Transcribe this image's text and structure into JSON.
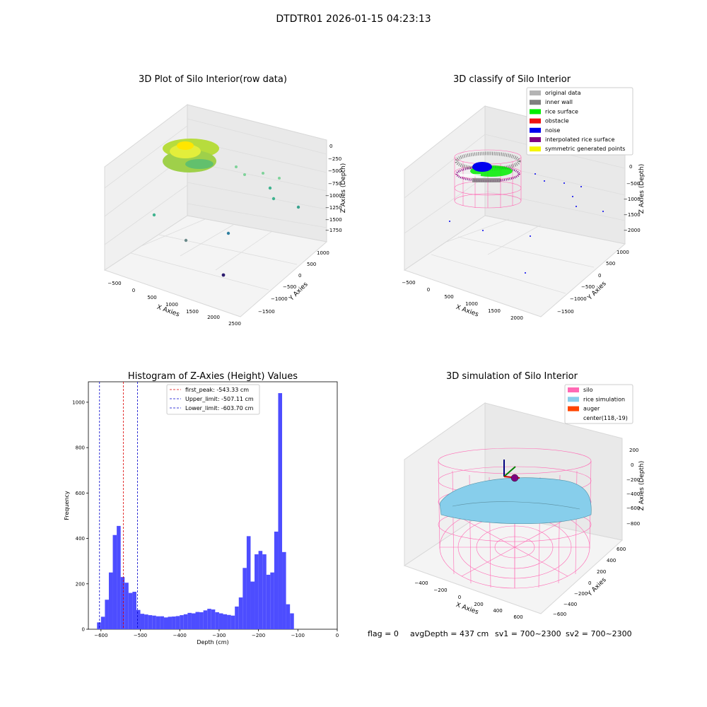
{
  "suptitle": "DTDTR01 2026-01-15 04:23:13",
  "footer": {
    "flag": "flag = 0",
    "avg_depth": "avgDepth = 437 cm",
    "sv1": "sv1 = 700~2300",
    "sv2": "sv2 = 700~2300"
  },
  "chart_data": [
    {
      "type": "scatter",
      "title": "3D Plot of Silo Interior(row data)",
      "xlabel": "X Axies",
      "ylabel": "Y Axies",
      "zlabel": "Z Axies (Depth)",
      "x_ticks": [
        "−500",
        "0",
        "500",
        "1000",
        "1500",
        "2000",
        "2500"
      ],
      "y_ticks": [
        "1000",
        "500",
        "0",
        "−500",
        "−1000",
        "−1500"
      ],
      "z_ticks": [
        "0",
        "−250",
        "−500",
        "−750",
        "−1000",
        "−1250",
        "−1500",
        "−1750"
      ],
      "grid": true,
      "colormap": [
        "#ffe600",
        "#9ad23a",
        "#33b58a",
        "#2f6ea6",
        "#2c1c6f"
      ]
    },
    {
      "type": "scatter",
      "title": "3D classify of Silo Interior",
      "xlabel": "X Axies",
      "ylabel": "Y Axies",
      "zlabel": "Z Axies (Depth)",
      "x_ticks": [
        "−500",
        "0",
        "500",
        "1000",
        "1500",
        "2000"
      ],
      "y_ticks": [
        "1000",
        "500",
        "0",
        "−500",
        "−1000",
        "−1500"
      ],
      "z_ticks": [
        "0",
        "−500",
        "−1000",
        "−1500",
        "−2000"
      ],
      "grid": true,
      "legend_position": "top-right",
      "legend": [
        {
          "label": "original data",
          "color": "#b4b4b4"
        },
        {
          "label": "inner wall",
          "color": "#808080"
        },
        {
          "label": "rice surface",
          "color": "#00ee00"
        },
        {
          "label": "obstacle",
          "color": "#ee1111"
        },
        {
          "label": "noise",
          "color": "#0000ee"
        },
        {
          "label": "interpolated rice surface",
          "color": "#800080"
        },
        {
          "label": "symmetric generated points",
          "color": "#f5f500"
        }
      ]
    },
    {
      "type": "bar",
      "title": "Histogram of Z-Axies (Height) Values",
      "xlabel": "Depth (cm)",
      "ylabel": "Frequency",
      "xlim": [
        -632,
        0
      ],
      "ylim": [
        0,
        1090
      ],
      "bin_width": 10,
      "bar_color": "#4d4dff",
      "x_ticks": [
        {
          "v": -600,
          "label": "−600"
        },
        {
          "v": -500,
          "label": "−500"
        },
        {
          "v": -400,
          "label": "−400"
        },
        {
          "v": -300,
          "label": "−300"
        },
        {
          "v": -200,
          "label": "−200"
        },
        {
          "v": -100,
          "label": "−100"
        },
        {
          "v": 0,
          "label": "0"
        }
      ],
      "y_ticks": [
        {
          "v": 0,
          "label": "0"
        },
        {
          "v": 200,
          "label": "200"
        },
        {
          "v": 400,
          "label": "400"
        },
        {
          "v": 600,
          "label": "600"
        },
        {
          "v": 800,
          "label": "800"
        },
        {
          "v": 1000,
          "label": "1000"
        }
      ],
      "bins": [
        {
          "x": -610,
          "y": 30
        },
        {
          "x": -600,
          "y": 55
        },
        {
          "x": -590,
          "y": 130
        },
        {
          "x": -580,
          "y": 250
        },
        {
          "x": -570,
          "y": 415
        },
        {
          "x": -560,
          "y": 455
        },
        {
          "x": -550,
          "y": 230
        },
        {
          "x": -540,
          "y": 205
        },
        {
          "x": -530,
          "y": 160
        },
        {
          "x": -520,
          "y": 165
        },
        {
          "x": -510,
          "y": 85
        },
        {
          "x": -500,
          "y": 68
        },
        {
          "x": -490,
          "y": 65
        },
        {
          "x": -480,
          "y": 62
        },
        {
          "x": -470,
          "y": 60
        },
        {
          "x": -460,
          "y": 57
        },
        {
          "x": -450,
          "y": 57
        },
        {
          "x": -440,
          "y": 52
        },
        {
          "x": -430,
          "y": 55
        },
        {
          "x": -420,
          "y": 56
        },
        {
          "x": -410,
          "y": 58
        },
        {
          "x": -400,
          "y": 62
        },
        {
          "x": -390,
          "y": 66
        },
        {
          "x": -380,
          "y": 72
        },
        {
          "x": -370,
          "y": 70
        },
        {
          "x": -360,
          "y": 76
        },
        {
          "x": -350,
          "y": 75
        },
        {
          "x": -340,
          "y": 83
        },
        {
          "x": -330,
          "y": 90
        },
        {
          "x": -320,
          "y": 87
        },
        {
          "x": -310,
          "y": 75
        },
        {
          "x": -300,
          "y": 70
        },
        {
          "x": -290,
          "y": 66
        },
        {
          "x": -280,
          "y": 63
        },
        {
          "x": -270,
          "y": 60
        },
        {
          "x": -260,
          "y": 100
        },
        {
          "x": -250,
          "y": 140
        },
        {
          "x": -240,
          "y": 270
        },
        {
          "x": -230,
          "y": 410
        },
        {
          "x": -220,
          "y": 210
        },
        {
          "x": -210,
          "y": 330
        },
        {
          "x": -200,
          "y": 345
        },
        {
          "x": -190,
          "y": 330
        },
        {
          "x": -180,
          "y": 240
        },
        {
          "x": -170,
          "y": 250
        },
        {
          "x": -160,
          "y": 430
        },
        {
          "x": -150,
          "y": 1040
        },
        {
          "x": -140,
          "y": 340
        },
        {
          "x": -130,
          "y": 110
        },
        {
          "x": -120,
          "y": 70
        }
      ],
      "vlines": [
        {
          "label": "first_peak: -543.33 cm",
          "x": -543.33,
          "color": "#dd0000"
        },
        {
          "label": "Upper_limit: -507.11 cm",
          "x": -507.11,
          "color": "#0000cc"
        },
        {
          "label": "Lower_limit: -603.70 cm",
          "x": -603.7,
          "color": "#0000cc"
        }
      ],
      "legend_position": "top-center"
    },
    {
      "type": "scatter",
      "title": "3D simulation of Silo Interior",
      "xlabel": "X Axies",
      "ylabel": "Y Axies",
      "zlabel": "Z Axies (Depth)",
      "x_ticks": [
        "−400",
        "−200",
        "0",
        "200",
        "400",
        "600"
      ],
      "y_ticks": [
        "600",
        "400",
        "200",
        "0",
        "−200",
        "−400",
        "−600"
      ],
      "z_ticks": [
        "200",
        "0",
        "−200",
        "−400",
        "−600",
        "−800"
      ],
      "grid": true,
      "legend_position": "top-right",
      "legend": [
        {
          "label": "silo",
          "color": "#ff69b4"
        },
        {
          "label": "rice simulation",
          "color": "#87ceeb"
        },
        {
          "label": "auger",
          "color": "#ff4500"
        },
        {
          "label": "center(118,-19)",
          "color": ""
        }
      ]
    }
  ]
}
